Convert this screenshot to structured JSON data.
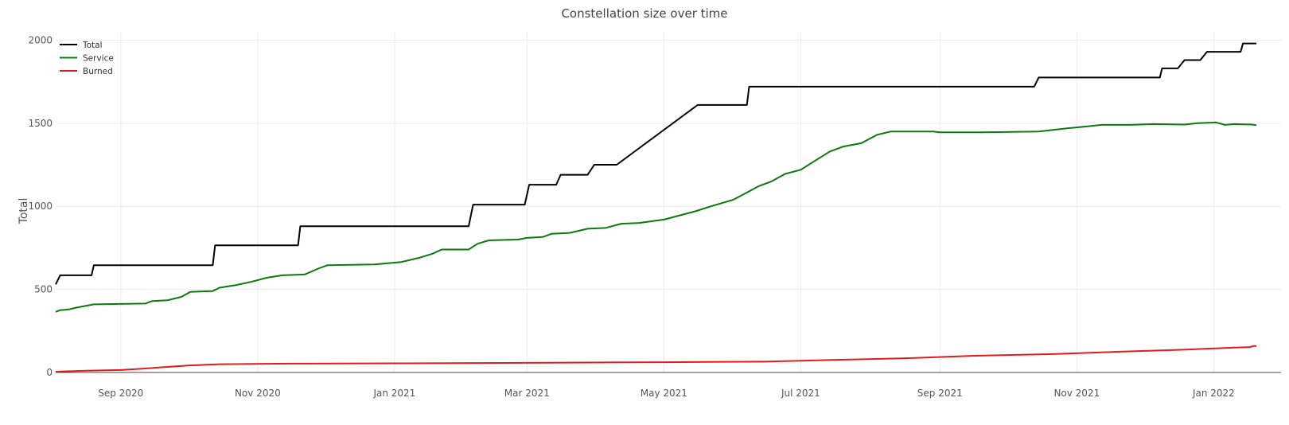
{
  "chart_data": {
    "type": "line",
    "title": "Constellation size over time",
    "xlabel": "",
    "ylabel": "Total",
    "xlim": [
      "2020-08-03",
      "2022-01-31"
    ],
    "ylim": [
      0,
      2050
    ],
    "y_ticks": [
      0,
      500,
      1000,
      1500,
      2000
    ],
    "x_ticks": [
      {
        "date": "2020-09-01",
        "label": "Sep 2020"
      },
      {
        "date": "2020-11-01",
        "label": "Nov 2020"
      },
      {
        "date": "2021-01-01",
        "label": "Jan 2021"
      },
      {
        "date": "2021-03-01",
        "label": "Mar 2021"
      },
      {
        "date": "2021-05-01",
        "label": "May 2021"
      },
      {
        "date": "2021-07-01",
        "label": "Jul 2021"
      },
      {
        "date": "2021-09-01",
        "label": "Sep 2021"
      },
      {
        "date": "2021-11-01",
        "label": "Nov 2021"
      },
      {
        "date": "2022-01-01",
        "label": "Jan 2022"
      }
    ],
    "grid": true,
    "legend_position": "top-left",
    "series": [
      {
        "name": "Total",
        "color": "#000000",
        "points": [
          [
            "2020-08-03",
            530
          ],
          [
            "2020-08-05",
            585
          ],
          [
            "2020-08-19",
            585
          ],
          [
            "2020-08-20",
            645
          ],
          [
            "2020-10-12",
            645
          ],
          [
            "2020-10-13",
            765
          ],
          [
            "2020-11-19",
            765
          ],
          [
            "2020-11-20",
            880
          ],
          [
            "2021-02-03",
            880
          ],
          [
            "2021-02-05",
            1010
          ],
          [
            "2021-02-28",
            1010
          ],
          [
            "2021-03-02",
            1130
          ],
          [
            "2021-03-14",
            1130
          ],
          [
            "2021-03-16",
            1190
          ],
          [
            "2021-03-28",
            1190
          ],
          [
            "2021-03-31",
            1250
          ],
          [
            "2021-04-10",
            1250
          ],
          [
            "2021-05-16",
            1610
          ],
          [
            "2021-06-07",
            1610
          ],
          [
            "2021-06-08",
            1720
          ],
          [
            "2021-10-13",
            1720
          ],
          [
            "2021-10-15",
            1775
          ],
          [
            "2021-12-08",
            1775
          ],
          [
            "2021-12-09",
            1830
          ],
          [
            "2021-12-16",
            1830
          ],
          [
            "2021-12-19",
            1880
          ],
          [
            "2021-12-26",
            1880
          ],
          [
            "2021-12-29",
            1930
          ],
          [
            "2022-01-13",
            1930
          ],
          [
            "2022-01-14",
            1980
          ],
          [
            "2022-01-20",
            1980
          ]
        ]
      },
      {
        "name": "Service",
        "color": "#0c7a0c",
        "points": [
          [
            "2020-08-03",
            365
          ],
          [
            "2020-08-05",
            375
          ],
          [
            "2020-08-09",
            380
          ],
          [
            "2020-08-12",
            390
          ],
          [
            "2020-08-20",
            410
          ],
          [
            "2020-09-12",
            415
          ],
          [
            "2020-09-15",
            430
          ],
          [
            "2020-09-22",
            435
          ],
          [
            "2020-09-28",
            455
          ],
          [
            "2020-10-02",
            485
          ],
          [
            "2020-10-12",
            490
          ],
          [
            "2020-10-15",
            510
          ],
          [
            "2020-10-22",
            525
          ],
          [
            "2020-10-29",
            545
          ],
          [
            "2020-11-05",
            570
          ],
          [
            "2020-11-12",
            585
          ],
          [
            "2020-11-22",
            590
          ],
          [
            "2020-11-28",
            625
          ],
          [
            "2020-12-02",
            645
          ],
          [
            "2020-12-23",
            650
          ],
          [
            "2021-01-04",
            665
          ],
          [
            "2021-01-12",
            690
          ],
          [
            "2021-01-18",
            715
          ],
          [
            "2021-01-22",
            740
          ],
          [
            "2021-02-03",
            740
          ],
          [
            "2021-02-07",
            775
          ],
          [
            "2021-02-12",
            795
          ],
          [
            "2021-02-25",
            800
          ],
          [
            "2021-03-01",
            810
          ],
          [
            "2021-03-08",
            815
          ],
          [
            "2021-03-12",
            835
          ],
          [
            "2021-03-20",
            840
          ],
          [
            "2021-03-28",
            865
          ],
          [
            "2021-04-05",
            870
          ],
          [
            "2021-04-12",
            895
          ],
          [
            "2021-04-20",
            900
          ],
          [
            "2021-05-01",
            920
          ],
          [
            "2021-05-15",
            970
          ],
          [
            "2021-05-22",
            1000
          ],
          [
            "2021-06-01",
            1040
          ],
          [
            "2021-06-08",
            1090
          ],
          [
            "2021-06-12",
            1120
          ],
          [
            "2021-06-18",
            1150
          ],
          [
            "2021-06-24",
            1195
          ],
          [
            "2021-07-01",
            1220
          ],
          [
            "2021-07-08",
            1280
          ],
          [
            "2021-07-14",
            1330
          ],
          [
            "2021-07-20",
            1360
          ],
          [
            "2021-07-28",
            1380
          ],
          [
            "2021-08-04",
            1430
          ],
          [
            "2021-08-10",
            1450
          ],
          [
            "2021-08-29",
            1450
          ],
          [
            "2021-09-01",
            1445
          ],
          [
            "2021-09-20",
            1445
          ],
          [
            "2021-10-15",
            1450
          ],
          [
            "2021-10-28",
            1470
          ],
          [
            "2021-11-05",
            1480
          ],
          [
            "2021-11-12",
            1490
          ],
          [
            "2021-11-25",
            1490
          ],
          [
            "2021-12-05",
            1495
          ],
          [
            "2021-12-19",
            1492
          ],
          [
            "2021-12-25",
            1500
          ],
          [
            "2022-01-02",
            1505
          ],
          [
            "2022-01-06",
            1490
          ],
          [
            "2022-01-10",
            1495
          ],
          [
            "2022-01-18",
            1492
          ],
          [
            "2022-01-20",
            1488
          ]
        ]
      },
      {
        "name": "Burned",
        "color": "#e01c1c",
        "points": [
          [
            "2020-08-03",
            5
          ],
          [
            "2020-08-15",
            10
          ],
          [
            "2020-09-01",
            15
          ],
          [
            "2020-09-10",
            22
          ],
          [
            "2020-09-18",
            30
          ],
          [
            "2020-10-01",
            42
          ],
          [
            "2020-10-15",
            50
          ],
          [
            "2020-11-15",
            53
          ],
          [
            "2021-01-01",
            55
          ],
          [
            "2021-03-01",
            58
          ],
          [
            "2021-05-01",
            62
          ],
          [
            "2021-06-15",
            65
          ],
          [
            "2021-07-15",
            75
          ],
          [
            "2021-08-15",
            85
          ],
          [
            "2021-09-15",
            100
          ],
          [
            "2021-10-20",
            110
          ],
          [
            "2021-11-20",
            125
          ],
          [
            "2021-12-20",
            138
          ],
          [
            "2022-01-10",
            150
          ],
          [
            "2022-01-17",
            153
          ],
          [
            "2022-01-19",
            160
          ],
          [
            "2022-01-20",
            158
          ]
        ]
      }
    ]
  }
}
